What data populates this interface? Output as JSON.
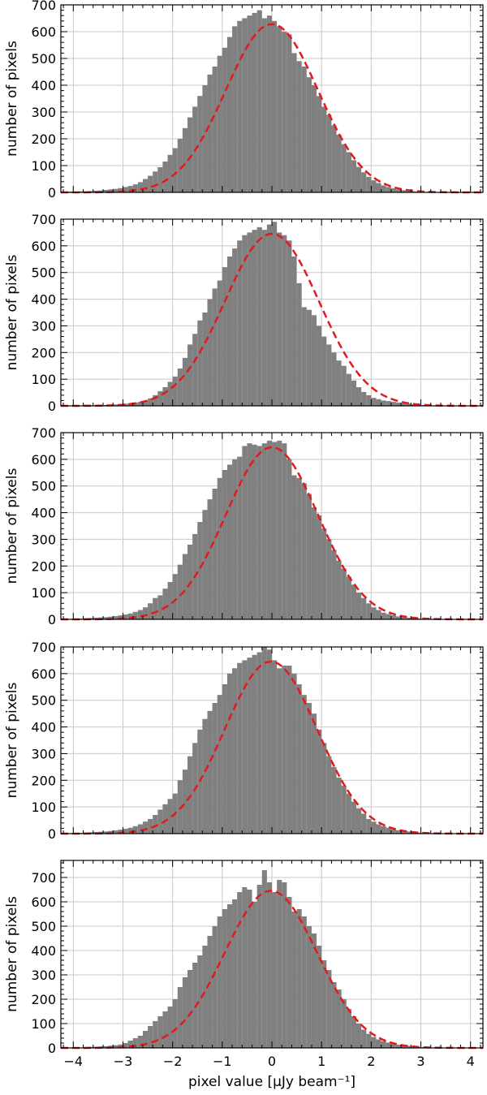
{
  "chart_data": [
    {
      "type": "bar",
      "subtype": "histogram",
      "ylabel": "number of pixels",
      "xlabel": "",
      "xlim": [
        -4.25,
        4.25
      ],
      "ylim": [
        0,
        700
      ],
      "xticks": [
        -4,
        -3,
        -2,
        -1,
        0,
        1,
        2,
        3,
        4
      ],
      "yticks": [
        0,
        100,
        200,
        300,
        400,
        500,
        600,
        700
      ],
      "grid": true,
      "bin_width": 0.1,
      "bins_x": [
        -4.2,
        -4.1,
        -4.0,
        -3.9,
        -3.8,
        -3.7,
        -3.6,
        -3.5,
        -3.4,
        -3.3,
        -3.2,
        -3.1,
        -3.0,
        -2.9,
        -2.8,
        -2.7,
        -2.6,
        -2.5,
        -2.4,
        -2.3,
        -2.2,
        -2.1,
        -2.0,
        -1.9,
        -1.8,
        -1.7,
        -1.6,
        -1.5,
        -1.4,
        -1.3,
        -1.2,
        -1.1,
        -1.0,
        -0.9,
        -0.8,
        -0.7,
        -0.6,
        -0.5,
        -0.4,
        -0.3,
        -0.2,
        -0.1,
        0.0,
        0.1,
        0.2,
        0.3,
        0.4,
        0.5,
        0.6,
        0.7,
        0.8,
        0.9,
        1.0,
        1.1,
        1.2,
        1.3,
        1.4,
        1.5,
        1.6,
        1.7,
        1.8,
        1.9,
        2.0,
        2.1,
        2.2,
        2.3,
        2.4,
        2.5,
        2.6,
        2.7,
        2.8,
        2.9,
        3.0,
        3.1,
        3.2,
        3.3,
        3.4,
        3.5,
        3.6,
        3.7,
        3.8,
        3.9,
        4.0,
        4.1
      ],
      "values": [
        2,
        3,
        3,
        4,
        4,
        5,
        6,
        7,
        9,
        11,
        13,
        16,
        20,
        24,
        30,
        38,
        50,
        62,
        78,
        94,
        115,
        140,
        165,
        200,
        240,
        280,
        320,
        360,
        400,
        440,
        470,
        510,
        540,
        580,
        620,
        640,
        650,
        660,
        670,
        680,
        650,
        660,
        640,
        620,
        600,
        590,
        520,
        490,
        470,
        430,
        400,
        360,
        320,
        290,
        250,
        215,
        180,
        150,
        120,
        95,
        75,
        58,
        45,
        35,
        26,
        20,
        15,
        11,
        8,
        6,
        4,
        3,
        2,
        2,
        1,
        1,
        1,
        1,
        0,
        0,
        0,
        0,
        0,
        0
      ],
      "fit": {
        "type": "gaussian",
        "style": "dashed",
        "color": "#e31a1c",
        "amplitude": 628,
        "mean": 0.0,
        "sigma": 0.93
      }
    },
    {
      "type": "bar",
      "subtype": "histogram",
      "ylabel": "number of pixels",
      "xlabel": "",
      "xlim": [
        -4.25,
        4.25
      ],
      "ylim": [
        0,
        700
      ],
      "xticks": [
        -4,
        -3,
        -2,
        -1,
        0,
        1,
        2,
        3,
        4
      ],
      "yticks": [
        0,
        100,
        200,
        300,
        400,
        500,
        600,
        700
      ],
      "grid": true,
      "bin_width": 0.1,
      "bins_x": [
        -4.2,
        -4.1,
        -4.0,
        -3.9,
        -3.8,
        -3.7,
        -3.6,
        -3.5,
        -3.4,
        -3.3,
        -3.2,
        -3.1,
        -3.0,
        -2.9,
        -2.8,
        -2.7,
        -2.6,
        -2.5,
        -2.4,
        -2.3,
        -2.2,
        -2.1,
        -2.0,
        -1.9,
        -1.8,
        -1.7,
        -1.6,
        -1.5,
        -1.4,
        -1.3,
        -1.2,
        -1.1,
        -1.0,
        -0.9,
        -0.8,
        -0.7,
        -0.6,
        -0.5,
        -0.4,
        -0.3,
        -0.2,
        -0.1,
        0.0,
        0.1,
        0.2,
        0.3,
        0.4,
        0.5,
        0.6,
        0.7,
        0.8,
        0.9,
        1.0,
        1.1,
        1.2,
        1.3,
        1.4,
        1.5,
        1.6,
        1.7,
        1.8,
        1.9,
        2.0,
        2.1,
        2.2,
        2.3,
        2.4,
        2.5,
        2.6,
        2.7,
        2.8,
        2.9,
        3.0,
        3.1,
        3.2,
        3.3,
        3.4,
        3.5,
        3.6,
        3.7,
        3.8,
        3.9,
        4.0,
        4.1
      ],
      "values": [
        1,
        1,
        1,
        1,
        2,
        2,
        2,
        3,
        3,
        4,
        5,
        6,
        8,
        10,
        12,
        15,
        20,
        28,
        40,
        55,
        70,
        90,
        110,
        140,
        180,
        230,
        270,
        320,
        350,
        400,
        440,
        470,
        520,
        560,
        590,
        620,
        640,
        650,
        660,
        670,
        660,
        680,
        690,
        650,
        640,
        620,
        560,
        460,
        370,
        360,
        340,
        300,
        260,
        230,
        200,
        170,
        150,
        120,
        95,
        70,
        52,
        40,
        30,
        25,
        20,
        18,
        15,
        12,
        10,
        8,
        6,
        4,
        3,
        2,
        2,
        1,
        1,
        1,
        1,
        0,
        0,
        0,
        0,
        0
      ],
      "fit": {
        "type": "gaussian",
        "style": "dashed",
        "color": "#e31a1c",
        "amplitude": 645,
        "mean": 0.0,
        "sigma": 0.95
      }
    },
    {
      "type": "bar",
      "subtype": "histogram",
      "ylabel": "number of pixels",
      "xlabel": "",
      "xlim": [
        -4.25,
        4.25
      ],
      "ylim": [
        0,
        700
      ],
      "xticks": [
        -4,
        -3,
        -2,
        -1,
        0,
        1,
        2,
        3,
        4
      ],
      "yticks": [
        0,
        100,
        200,
        300,
        400,
        500,
        600,
        700
      ],
      "grid": true,
      "bin_width": 0.1,
      "bins_x": [
        -4.2,
        -4.1,
        -4.0,
        -3.9,
        -3.8,
        -3.7,
        -3.6,
        -3.5,
        -3.4,
        -3.3,
        -3.2,
        -3.1,
        -3.0,
        -2.9,
        -2.8,
        -2.7,
        -2.6,
        -2.5,
        -2.4,
        -2.3,
        -2.2,
        -2.1,
        -2.0,
        -1.9,
        -1.8,
        -1.7,
        -1.6,
        -1.5,
        -1.4,
        -1.3,
        -1.2,
        -1.1,
        -1.0,
        -0.9,
        -0.8,
        -0.7,
        -0.6,
        -0.5,
        -0.4,
        -0.3,
        -0.2,
        -0.1,
        0.0,
        0.1,
        0.2,
        0.3,
        0.4,
        0.5,
        0.6,
        0.7,
        0.8,
        0.9,
        1.0,
        1.1,
        1.2,
        1.3,
        1.4,
        1.5,
        1.6,
        1.7,
        1.8,
        1.9,
        2.0,
        2.1,
        2.2,
        2.3,
        2.4,
        2.5,
        2.6,
        2.7,
        2.8,
        2.9,
        3.0,
        3.1,
        3.2,
        3.3,
        3.4,
        3.5,
        3.6,
        3.7,
        3.8,
        3.9,
        4.0,
        4.1
      ],
      "values": [
        2,
        2,
        3,
        3,
        4,
        5,
        6,
        7,
        8,
        10,
        12,
        15,
        18,
        22,
        28,
        35,
        45,
        60,
        80,
        90,
        115,
        140,
        170,
        205,
        245,
        280,
        320,
        365,
        410,
        450,
        490,
        530,
        560,
        580,
        600,
        610,
        650,
        660,
        655,
        650,
        660,
        670,
        665,
        670,
        660,
        600,
        540,
        530,
        510,
        470,
        420,
        390,
        340,
        300,
        260,
        220,
        190,
        160,
        130,
        100,
        80,
        60,
        45,
        35,
        25,
        20,
        15,
        11,
        8,
        6,
        4,
        3,
        2,
        2,
        1,
        1,
        1,
        1,
        0,
        0,
        0,
        0,
        0,
        0
      ],
      "fit": {
        "type": "gaussian",
        "style": "dashed",
        "color": "#e31a1c",
        "amplitude": 645,
        "mean": 0.0,
        "sigma": 0.93
      }
    },
    {
      "type": "bar",
      "subtype": "histogram",
      "ylabel": "number of pixels",
      "xlabel": "",
      "xlim": [
        -4.25,
        4.25
      ],
      "ylim": [
        0,
        700
      ],
      "xticks": [
        -4,
        -3,
        -2,
        -1,
        0,
        1,
        2,
        3,
        4
      ],
      "yticks": [
        0,
        100,
        200,
        300,
        400,
        500,
        600,
        700
      ],
      "grid": true,
      "bin_width": 0.1,
      "bins_x": [
        -4.2,
        -4.1,
        -4.0,
        -3.9,
        -3.8,
        -3.7,
        -3.6,
        -3.5,
        -3.4,
        -3.3,
        -3.2,
        -3.1,
        -3.0,
        -2.9,
        -2.8,
        -2.7,
        -2.6,
        -2.5,
        -2.4,
        -2.3,
        -2.2,
        -2.1,
        -2.0,
        -1.9,
        -1.8,
        -1.7,
        -1.6,
        -1.5,
        -1.4,
        -1.3,
        -1.2,
        -1.1,
        -1.0,
        -0.9,
        -0.8,
        -0.7,
        -0.6,
        -0.5,
        -0.4,
        -0.3,
        -0.2,
        -0.1,
        0.0,
        0.1,
        0.2,
        0.3,
        0.4,
        0.5,
        0.6,
        0.7,
        0.8,
        0.9,
        1.0,
        1.1,
        1.2,
        1.3,
        1.4,
        1.5,
        1.6,
        1.7,
        1.8,
        1.9,
        2.0,
        2.1,
        2.2,
        2.3,
        2.4,
        2.5,
        2.6,
        2.7,
        2.8,
        2.9,
        3.0,
        3.1,
        3.2,
        3.3,
        3.4,
        3.5,
        3.6,
        3.7,
        3.8,
        3.9,
        4.0,
        4.1
      ],
      "values": [
        2,
        2,
        3,
        3,
        4,
        5,
        6,
        7,
        8,
        10,
        12,
        15,
        18,
        22,
        28,
        35,
        45,
        55,
        70,
        90,
        110,
        130,
        150,
        200,
        240,
        290,
        340,
        390,
        430,
        460,
        490,
        520,
        560,
        600,
        620,
        640,
        650,
        660,
        670,
        680,
        700,
        690,
        650,
        620,
        630,
        630,
        600,
        560,
        520,
        490,
        450,
        390,
        340,
        290,
        250,
        210,
        180,
        150,
        120,
        95,
        75,
        55,
        45,
        35,
        28,
        22,
        17,
        13,
        10,
        8,
        6,
        4,
        3,
        2,
        2,
        1,
        1,
        1,
        1,
        0,
        0,
        0,
        0,
        0
      ],
      "fit": {
        "type": "gaussian",
        "style": "dashed",
        "color": "#e31a1c",
        "amplitude": 645,
        "mean": -0.02,
        "sigma": 0.93
      }
    },
    {
      "type": "bar",
      "subtype": "histogram",
      "ylabel": "number of pixels",
      "xlabel": "pixel value [μJy beam⁻¹]",
      "xlim": [
        -4.25,
        4.25
      ],
      "ylim": [
        0,
        770
      ],
      "xticks": [
        -4,
        -3,
        -2,
        -1,
        0,
        1,
        2,
        3,
        4
      ],
      "yticks": [
        0,
        100,
        200,
        300,
        400,
        500,
        600,
        700
      ],
      "grid": true,
      "bin_width": 0.1,
      "bins_x": [
        -4.2,
        -4.1,
        -4.0,
        -3.9,
        -3.8,
        -3.7,
        -3.6,
        -3.5,
        -3.4,
        -3.3,
        -3.2,
        -3.1,
        -3.0,
        -2.9,
        -2.8,
        -2.7,
        -2.6,
        -2.5,
        -2.4,
        -2.3,
        -2.2,
        -2.1,
        -2.0,
        -1.9,
        -1.8,
        -1.7,
        -1.6,
        -1.5,
        -1.4,
        -1.3,
        -1.2,
        -1.1,
        -1.0,
        -0.9,
        -0.8,
        -0.7,
        -0.6,
        -0.5,
        -0.4,
        -0.3,
        -0.2,
        -0.1,
        0.0,
        0.1,
        0.2,
        0.3,
        0.4,
        0.5,
        0.6,
        0.7,
        0.8,
        0.9,
        1.0,
        1.1,
        1.2,
        1.3,
        1.4,
        1.5,
        1.6,
        1.7,
        1.8,
        1.9,
        2.0,
        2.1,
        2.2,
        2.3,
        2.4,
        2.5,
        2.6,
        2.7,
        2.8,
        2.9,
        3.0,
        3.1,
        3.2,
        3.3,
        3.4,
        3.5,
        3.6,
        3.7,
        3.8,
        3.9,
        4.0,
        4.1
      ],
      "values": [
        1,
        1,
        2,
        2,
        3,
        4,
        5,
        6,
        7,
        9,
        11,
        14,
        20,
        30,
        40,
        50,
        70,
        90,
        110,
        130,
        150,
        170,
        200,
        250,
        290,
        320,
        350,
        380,
        420,
        460,
        500,
        540,
        570,
        590,
        610,
        640,
        660,
        650,
        600,
        670,
        730,
        680,
        640,
        690,
        680,
        620,
        560,
        570,
        540,
        500,
        470,
        420,
        360,
        320,
        270,
        240,
        200,
        160,
        130,
        100,
        75,
        58,
        45,
        35,
        28,
        22,
        17,
        13,
        10,
        8,
        6,
        4,
        3,
        2,
        2,
        1,
        1,
        1,
        1,
        0,
        0,
        0,
        0,
        0
      ],
      "fit": {
        "type": "gaussian",
        "style": "dashed",
        "color": "#e31a1c",
        "amplitude": 645,
        "mean": -0.02,
        "sigma": 0.93
      }
    }
  ],
  "colors": {
    "bars": "#808080",
    "fit": "#e31a1c",
    "grid": "#c8c8c8",
    "axes": "#000000"
  }
}
